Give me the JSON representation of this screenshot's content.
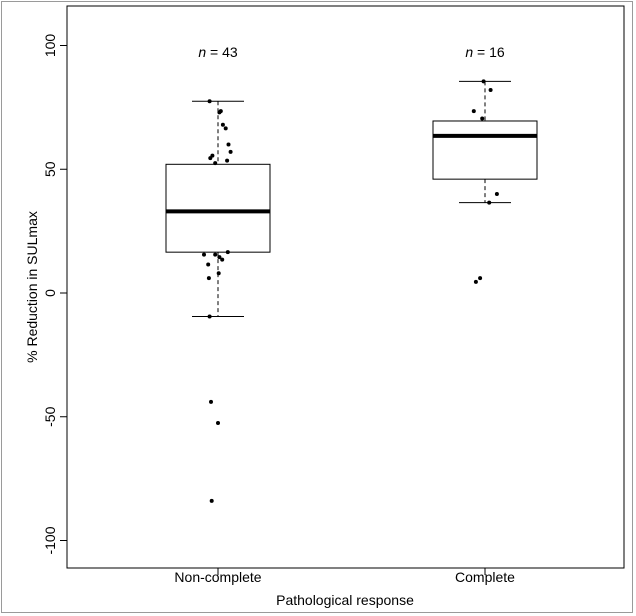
{
  "chart_data": {
    "type": "boxplot",
    "xlabel": "Pathological response",
    "ylabel": "% Reduction in SULmax",
    "ylim": [
      -100,
      100
    ],
    "yticks": [
      -100,
      -50,
      0,
      50,
      100
    ],
    "ytick_labels": [
      "-100",
      "-50",
      "0",
      "50",
      "100"
    ],
    "categories": [
      "Non-complete",
      "Complete"
    ],
    "groups": [
      {
        "label": "Non-complete",
        "n_label": "n = 43",
        "n_prefix": "n",
        "n_suffix": " = 43",
        "whisker_low": -9.5,
        "q1": 16.5,
        "median": 33,
        "q3": 52,
        "whisker_high": 77.5,
        "outliers": [
          -44,
          -52.5,
          -84
        ],
        "points": [
          [
            77.5,
            -0.12
          ],
          [
            73,
            0.02
          ],
          [
            73.5,
            0.04
          ],
          [
            68,
            0.07
          ],
          [
            66.5,
            0.11
          ],
          [
            60,
            0.15
          ],
          [
            57,
            0.18
          ],
          [
            55.5,
            -0.08
          ],
          [
            54.5,
            -0.11
          ],
          [
            53.5,
            0.13
          ],
          [
            52.5,
            -0.04
          ],
          [
            15.5,
            -0.2
          ],
          [
            15.5,
            -0.04
          ],
          [
            14.5,
            0.02
          ],
          [
            13.5,
            0.06
          ],
          [
            16.5,
            0.14
          ],
          [
            11.5,
            -0.14
          ],
          [
            8,
            0.01
          ],
          [
            6,
            -0.13
          ],
          [
            -9.5,
            -0.12
          ],
          [
            -44,
            -0.1
          ],
          [
            -52.5,
            0.0
          ],
          [
            -84,
            -0.09
          ]
        ]
      },
      {
        "label": "Complete",
        "n_label": "n = 16",
        "n_prefix": "n",
        "n_suffix": " = 16",
        "whisker_low": 36.5,
        "q1": 46,
        "median": 63.5,
        "q3": 69.5,
        "whisker_high": 85.5,
        "outliers": [
          4.5,
          6
        ],
        "points": [
          [
            85.5,
            -0.02
          ],
          [
            82,
            0.08
          ],
          [
            73.5,
            -0.16
          ],
          [
            70.5,
            -0.04
          ],
          [
            40,
            0.17
          ],
          [
            36.5,
            0.06
          ],
          [
            6,
            -0.07
          ],
          [
            4.5,
            -0.13
          ]
        ]
      }
    ],
    "grid": false,
    "legend": "none"
  }
}
